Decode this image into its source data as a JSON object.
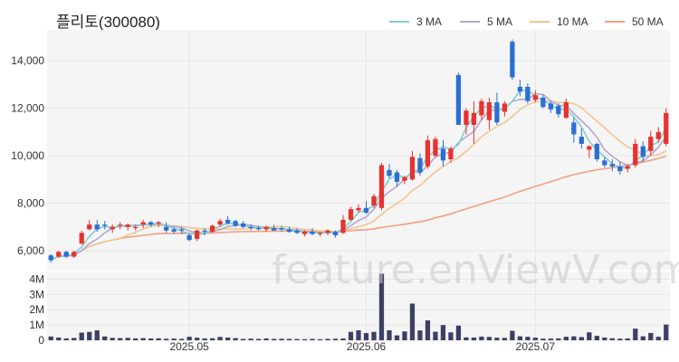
{
  "title": "플리토(300080)",
  "watermark": "feature.enViewV.com",
  "legend": [
    {
      "label": "3 MA",
      "color": "#7fd0cc"
    },
    {
      "label": "5 MA",
      "color": "#b3a6cf"
    },
    {
      "label": "10 MA",
      "color": "#f2c58f"
    },
    {
      "label": "50 MA",
      "color": "#f2a080"
    }
  ],
  "colors": {
    "up": "#e8322e",
    "down": "#2b6ed4",
    "volume": "#3d3f66",
    "grid": "#e6e6e6",
    "plot_bg": "#f5f5f5"
  },
  "chart_data": {
    "type": "candlestick",
    "title": "플리토(300080)",
    "price_axis": {
      "ticks": [
        6000,
        8000,
        10000,
        12000,
        14000
      ],
      "tick_labels": [
        "6,000",
        "8,000",
        "10,000",
        "12,000",
        "14,000"
      ],
      "ylim": [
        5200,
        15300
      ]
    },
    "volume_axis": {
      "ticks": [
        0,
        1000000,
        2000000,
        3000000,
        4000000
      ],
      "tick_labels": [
        "0",
        "1M",
        "2M",
        "3M",
        "4M"
      ],
      "ylim": [
        0,
        4500000
      ]
    },
    "x_tick_labels": [
      {
        "label": "2025.05",
        "index": 18
      },
      {
        "label": "2025.06",
        "index": 41
      },
      {
        "label": "2025.07",
        "index": 63
      }
    ],
    "ohlc": [
      [
        5800,
        5850,
        5500,
        5600
      ],
      [
        5750,
        6000,
        5700,
        5950
      ],
      [
        5950,
        6000,
        5700,
        5750
      ],
      [
        5750,
        6000,
        5700,
        5950
      ],
      [
        6300,
        6850,
        6250,
        6750
      ],
      [
        6900,
        7300,
        6850,
        7100
      ],
      [
        7100,
        7300,
        6800,
        6900
      ],
      [
        7100,
        7250,
        6900,
        7050
      ],
      [
        6900,
        7100,
        6750,
        7000
      ],
      [
        7050,
        7200,
        6900,
        7100
      ],
      [
        7000,
        7150,
        6850,
        7100
      ],
      [
        6950,
        7100,
        6850,
        7000
      ],
      [
        7100,
        7300,
        6950,
        7200
      ],
      [
        7200,
        7250,
        7000,
        7100
      ],
      [
        7150,
        7250,
        7000,
        7200
      ],
      [
        7000,
        7200,
        6750,
        6850
      ],
      [
        6900,
        7000,
        6700,
        6800
      ],
      [
        6900,
        7000,
        6700,
        6850
      ],
      [
        6650,
        6750,
        6400,
        6450
      ],
      [
        6500,
        6900,
        6400,
        6850
      ],
      [
        6850,
        6950,
        6650,
        6800
      ],
      [
        6800,
        7100,
        6750,
        7050
      ],
      [
        7100,
        7350,
        7000,
        7250
      ],
      [
        7300,
        7450,
        7100,
        7150
      ],
      [
        7250,
        7300,
        7000,
        7050
      ],
      [
        7150,
        7250,
        6950,
        7000
      ],
      [
        7000,
        7100,
        6850,
        6950
      ],
      [
        6950,
        7050,
        6850,
        6900
      ],
      [
        6900,
        7050,
        6800,
        7000
      ],
      [
        6950,
        7100,
        6850,
        6850
      ],
      [
        6950,
        7050,
        6800,
        6900
      ],
      [
        6900,
        7000,
        6750,
        6800
      ],
      [
        6850,
        6950,
        6700,
        6750
      ],
      [
        6700,
        6850,
        6600,
        6800
      ],
      [
        6800,
        6950,
        6650,
        6700
      ],
      [
        6700,
        6800,
        6600,
        6750
      ],
      [
        6750,
        6900,
        6650,
        6850
      ],
      [
        6800,
        6850,
        6550,
        6650
      ],
      [
        6750,
        7500,
        6700,
        7300
      ],
      [
        7300,
        7850,
        7250,
        7750
      ],
      [
        7700,
        7950,
        7600,
        7800
      ],
      [
        7800,
        8100,
        7550,
        7600
      ],
      [
        7900,
        8400,
        7800,
        8300
      ],
      [
        7800,
        9700,
        7700,
        9600
      ],
      [
        9400,
        9650,
        9050,
        9150
      ],
      [
        9300,
        9400,
        8700,
        8900
      ],
      [
        8950,
        9150,
        8800,
        9100
      ],
      [
        9000,
        10200,
        8950,
        9950
      ],
      [
        9900,
        10100,
        9150,
        9300
      ],
      [
        9550,
        10850,
        9450,
        10650
      ],
      [
        10000,
        10800,
        9950,
        10700
      ],
      [
        10300,
        10650,
        9550,
        9800
      ],
      [
        9850,
        10400,
        9700,
        10300
      ],
      [
        13400,
        13500,
        11300,
        11300
      ],
      [
        11300,
        12000,
        10900,
        11900
      ],
      [
        11300,
        12300,
        10500,
        11800
      ],
      [
        11700,
        12400,
        11500,
        12300
      ],
      [
        11500,
        12450,
        11100,
        12250
      ],
      [
        12250,
        12650,
        11300,
        11400
      ],
      [
        11850,
        12300,
        11650,
        12200
      ],
      [
        14800,
        14900,
        13200,
        13300
      ],
      [
        12900,
        13200,
        12500,
        12700
      ],
      [
        12900,
        13050,
        12200,
        12300
      ],
      [
        12350,
        12750,
        12250,
        12550
      ],
      [
        12450,
        12550,
        12000,
        12050
      ],
      [
        12200,
        12300,
        11800,
        11950
      ],
      [
        12100,
        12200,
        11600,
        11750
      ],
      [
        11600,
        12400,
        11550,
        12250
      ],
      [
        11400,
        11600,
        10550,
        10900
      ],
      [
        10800,
        11150,
        10300,
        10500
      ],
      [
        10250,
        10450,
        9900,
        10400
      ],
      [
        10500,
        10550,
        9750,
        9850
      ],
      [
        9800,
        9950,
        9500,
        9600
      ],
      [
        9650,
        9850,
        9350,
        9550
      ],
      [
        9550,
        9750,
        9200,
        9350
      ],
      [
        9450,
        9650,
        9300,
        9550
      ],
      [
        9600,
        10700,
        9500,
        10500
      ],
      [
        10400,
        10600,
        9750,
        9950
      ],
      [
        10200,
        11050,
        10000,
        10800
      ],
      [
        10700,
        11200,
        10550,
        11000
      ],
      [
        10500,
        12000,
        10400,
        11800
      ]
    ],
    "volume": [
      250000,
      180000,
      120000,
      150000,
      500000,
      550000,
      650000,
      250000,
      160000,
      140000,
      160000,
      120000,
      140000,
      120000,
      130000,
      100000,
      110000,
      90000,
      230000,
      170000,
      120000,
      130000,
      220000,
      180000,
      140000,
      90000,
      110000,
      90000,
      120000,
      90000,
      100000,
      90000,
      80000,
      70000,
      90000,
      70000,
      90000,
      100000,
      120000,
      550000,
      650000,
      470000,
      550000,
      4350000,
      650000,
      320000,
      580000,
      2400000,
      640000,
      1300000,
      560000,
      1000000,
      520000,
      960000,
      190000,
      180000,
      240000,
      220000,
      170000,
      160000,
      620000,
      260000,
      230000,
      170000,
      110000,
      110000,
      120000,
      230000,
      260000,
      210000,
      520000,
      290000,
      180000,
      130000,
      110000,
      120000,
      760000,
      260000,
      480000,
      230000,
      1030000
    ]
  }
}
